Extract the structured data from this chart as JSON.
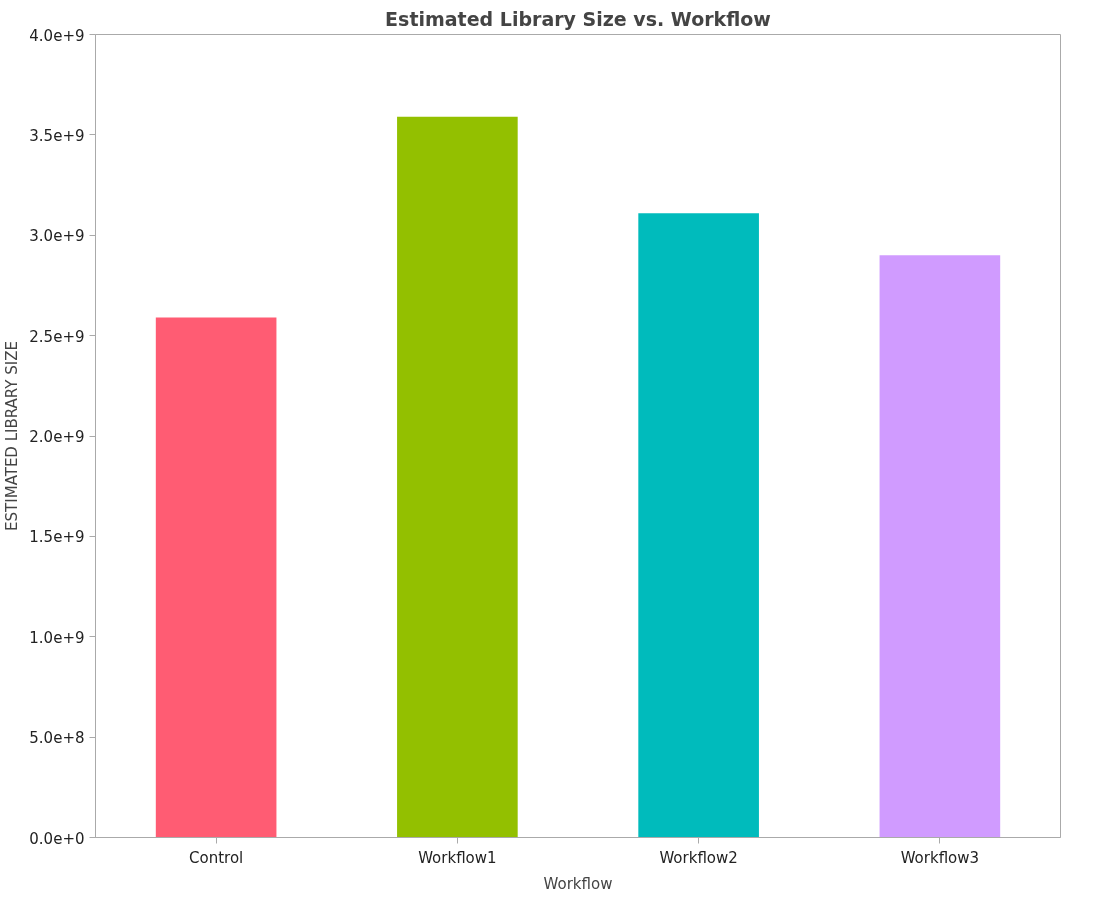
{
  "chart_data": {
    "type": "bar",
    "title": "Estimated Library Size vs. Workflow",
    "xlabel": "Workflow",
    "ylabel": "ESTIMATED LIBRARY SIZE",
    "categories": [
      "Control",
      "Workflow1",
      "Workflow2",
      "Workflow3"
    ],
    "values": [
      2590000000.0,
      3590000000.0,
      3110000000.0,
      2900000000.0
    ],
    "colors": [
      "#ff5c73",
      "#93c000",
      "#00bbbc",
      "#d09bff"
    ],
    "ylim": [
      0,
      4000000000.0
    ],
    "yticks": [
      {
        "value": 0,
        "label": "0.0e+0"
      },
      {
        "value": 500000000.0,
        "label": "5.0e+8"
      },
      {
        "value": 1000000000.0,
        "label": "1.0e+9"
      },
      {
        "value": 1500000000.0,
        "label": "1.5e+9"
      },
      {
        "value": 2000000000.0,
        "label": "2.0e+9"
      },
      {
        "value": 2500000000.0,
        "label": "2.5e+9"
      },
      {
        "value": 3000000000.0,
        "label": "3.0e+9"
      },
      {
        "value": 3500000000.0,
        "label": "3.5e+9"
      },
      {
        "value": 4000000000.0,
        "label": "4.0e+9"
      }
    ],
    "grid": false
  }
}
